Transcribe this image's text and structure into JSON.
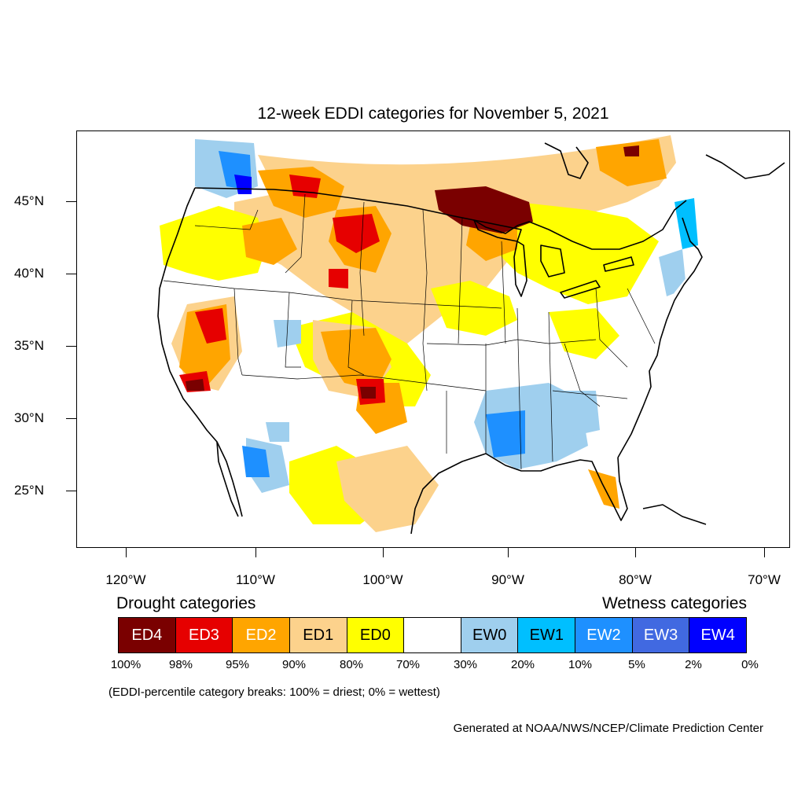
{
  "title": "12-week EDDI categories for November 5, 2021",
  "lat_labels": [
    "45°N",
    "40°N",
    "35°N",
    "30°N",
    "25°N"
  ],
  "lon_labels": [
    "120°W",
    "110°W",
    "100°W",
    "90°W",
    "80°W",
    "70°W"
  ],
  "legend": {
    "drought_heading": "Drought categories",
    "wetness_heading": "Wetness categories",
    "categories": [
      {
        "label": "ED4",
        "color": "#7a0000",
        "text_color": "#ffffff"
      },
      {
        "label": "ED3",
        "color": "#e60000",
        "text_color": "#ffffff"
      },
      {
        "label": "ED2",
        "color": "#ffa500",
        "text_color": "#ffffff"
      },
      {
        "label": "ED1",
        "color": "#fcd28c",
        "text_color": "#000000"
      },
      {
        "label": "ED0",
        "color": "#ffff00",
        "text_color": "#000000"
      },
      {
        "label": "",
        "color": "#ffffff",
        "text_color": "#000000"
      },
      {
        "label": "EW0",
        "color": "#9fcfee",
        "text_color": "#000000"
      },
      {
        "label": "EW1",
        "color": "#00bfff",
        "text_color": "#000000"
      },
      {
        "label": "EW2",
        "color": "#1e90ff",
        "text_color": "#ffffff"
      },
      {
        "label": "EW3",
        "color": "#4169e1",
        "text_color": "#ffffff"
      },
      {
        "label": "EW4",
        "color": "#0000ff",
        "text_color": "#ffffff"
      }
    ],
    "percentiles": [
      "100%",
      "98%",
      "95%",
      "90%",
      "80%",
      "70%",
      "30%",
      "20%",
      "10%",
      "5%",
      "2%",
      "0%"
    ]
  },
  "note": "(EDDI-percentile category breaks: 100% = driest; 0% = wettest)",
  "credit": "Generated at NOAA/NWS/NCEP/Climate Prediction Center"
}
